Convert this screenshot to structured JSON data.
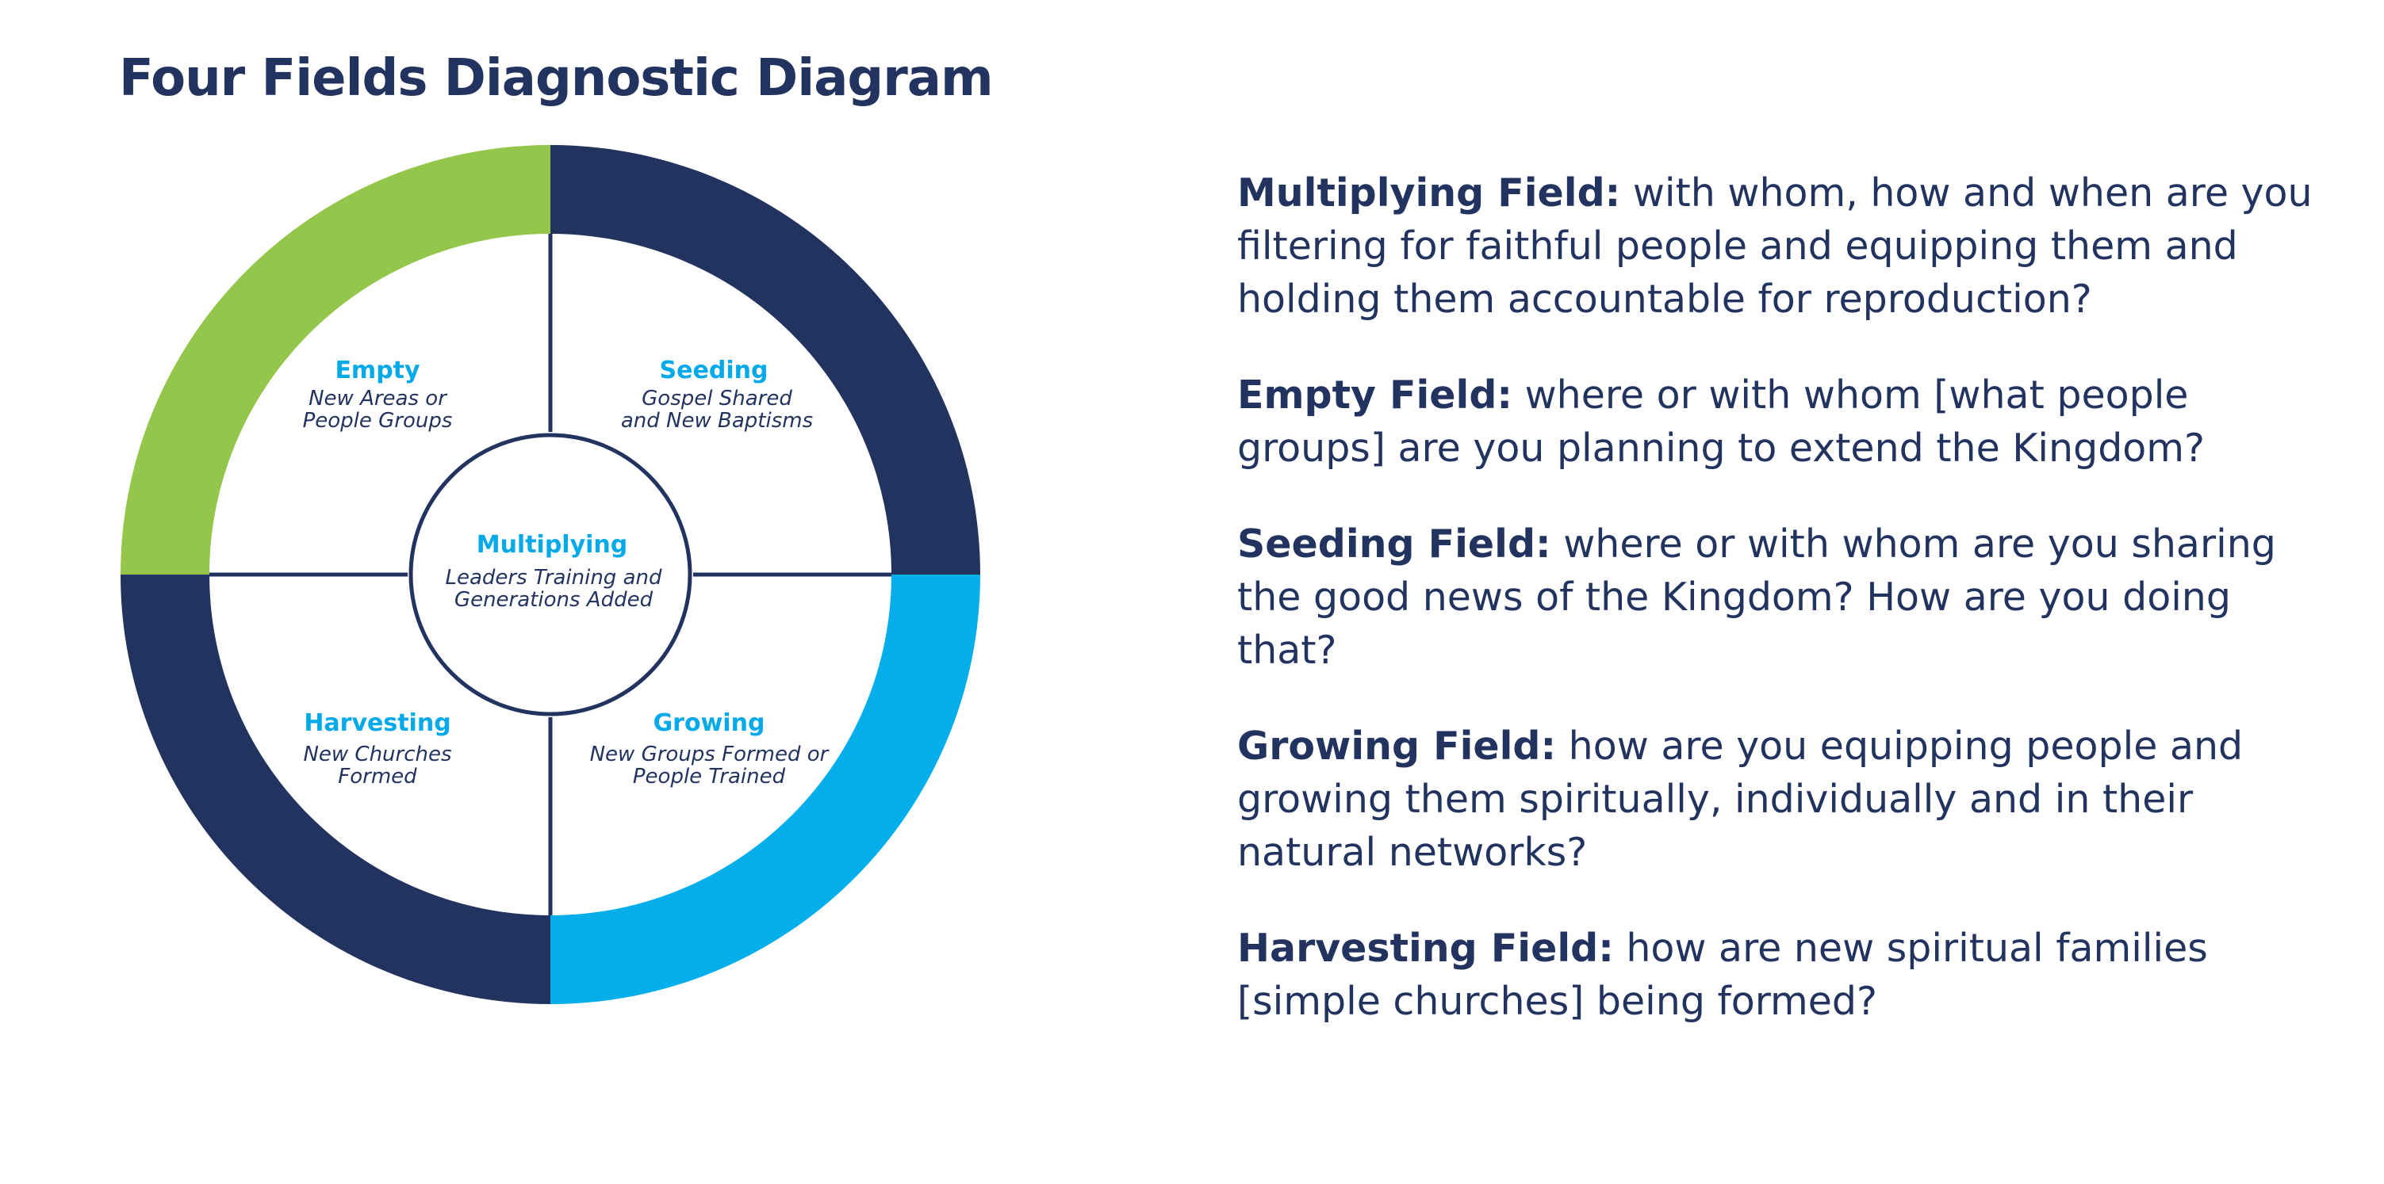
{
  "title": "Four Fields Diagnostic Diagram",
  "colors": {
    "navy": "#22335f",
    "green": "#95c64c",
    "blue": "#03aeea",
    "label_blue": "#03a9e8"
  },
  "diagram": {
    "empty": {
      "title": "Empty",
      "line1": "New Areas or",
      "line2": "People Groups"
    },
    "seeding": {
      "title": "Seeding",
      "line1": "Gospel Shared",
      "line2": "and New Baptisms"
    },
    "harvesting": {
      "title": "Harvesting",
      "line1": "New Churches",
      "line2": "Formed"
    },
    "growing": {
      "title": "Growing",
      "line1": "New Groups Formed or",
      "line2": "People Trained"
    },
    "multiplying": {
      "title": "Multiplying",
      "line1": "Leaders Training and",
      "line2": "Generations Added"
    }
  },
  "questions": [
    {
      "label": "Multiplying Field:",
      "text": " with whom, how and when are you filtering for faithful people and equipping them and holding them accountable for reproduction?"
    },
    {
      "label": "Empty Field:",
      "text": " where or with whom [what people groups] are you planning to extend the Kingdom?"
    },
    {
      "label": "Seeding Field:",
      "text": " where or with whom are you sharing the good news of the Kingdom? How are you doing that?"
    },
    {
      "label": "Growing Field:",
      "text": " how are you equipping people and growing them spiritually, individually and in their natural networks?"
    },
    {
      "label": "Harvesting Field:",
      "text": " how are new spiritual families [simple churches] being formed?"
    }
  ]
}
